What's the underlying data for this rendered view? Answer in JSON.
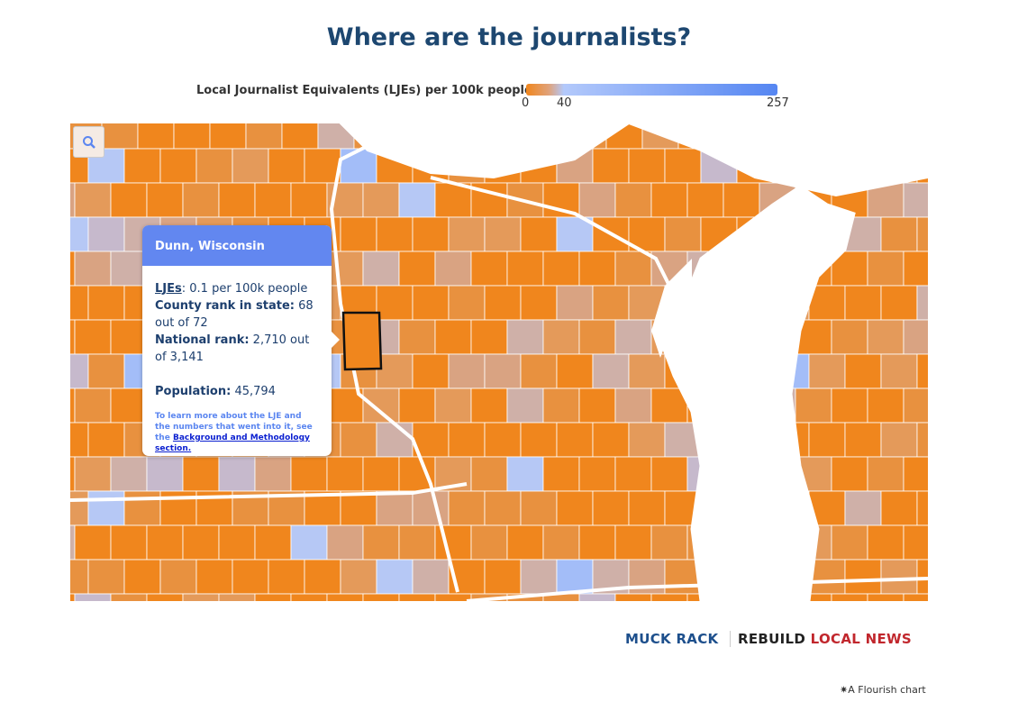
{
  "title": "Where are the journalists?",
  "legend": {
    "label": "Local Journalist Equivalents (LJEs) per 100k people",
    "ticks": [
      "0",
      "40",
      "257"
    ],
    "min": 0,
    "mid": 40,
    "max": 257,
    "colors": [
      "#f0861d",
      "#b3c9fb",
      "#5586f2"
    ]
  },
  "map": {
    "palette": [
      "#f0861d",
      "#e8913f",
      "#e49a5a",
      "#d9a382",
      "#cfb0a8",
      "#c6b9cc",
      "#b6c8f5",
      "#a3bdf8"
    ],
    "lake_color": "#ffffff",
    "highlighted_county": "Dunn, Wisconsin"
  },
  "zoom_button": {
    "icon": "search-icon"
  },
  "tooltip": {
    "title": "Dunn, Wisconsin",
    "ljes_label": "LJEs",
    "ljes_value": ": 0.1 per 100k people",
    "state_rank_label": "County rank in state:",
    "state_rank_value": " 68 out of 72",
    "national_rank_label": "National rank:",
    "national_rank_value": " 2,710 out of 3,141",
    "population_label": "Population:",
    "population_value": " 45,794",
    "note": "To learn more about the LJE and the numbers that went into it, see the ",
    "note_link": "Background and Methodology section."
  },
  "footer": {
    "logo1": "MUCK RACK",
    "logo2a": "REBUILD",
    "logo2b": "LOCAL NEWS",
    "credit": "A Flourish chart"
  }
}
